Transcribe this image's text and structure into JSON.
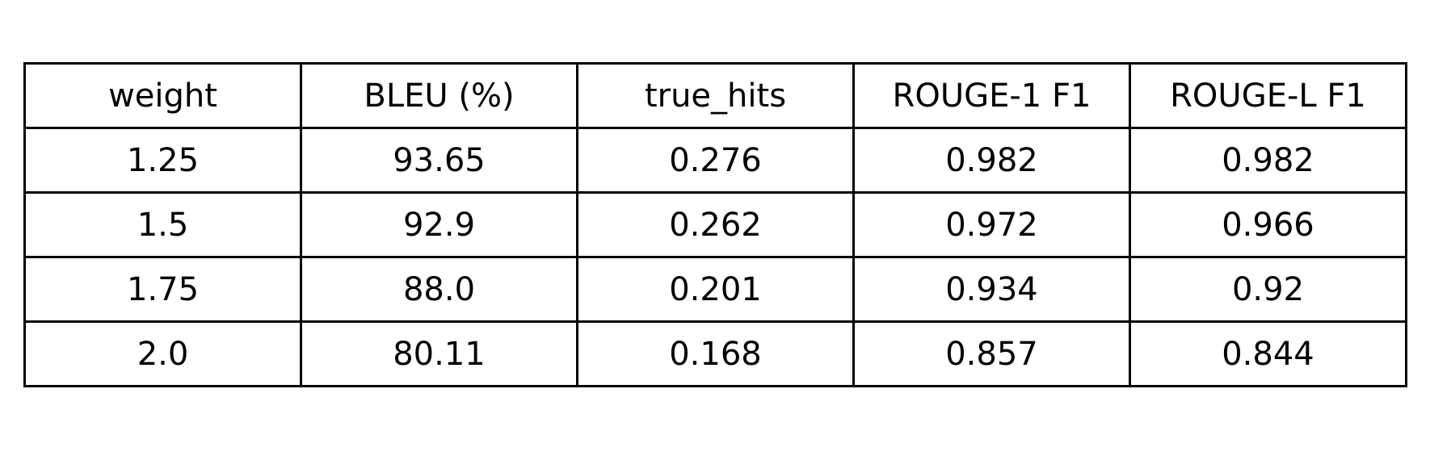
{
  "chart_data": {
    "type": "table",
    "columns": [
      "weight",
      "BLEU (%)",
      "true_hits",
      "ROUGE-1 F1",
      "ROUGE-L F1"
    ],
    "rows": [
      [
        "1.25",
        "93.65",
        "0.276",
        "0.982",
        "0.982"
      ],
      [
        "1.5",
        "92.9",
        "0.262",
        "0.972",
        "0.966"
      ],
      [
        "1.75",
        "88.0",
        "0.201",
        "0.934",
        "0.92"
      ],
      [
        "2.0",
        "80.11",
        "0.168",
        "0.857",
        "0.844"
      ]
    ]
  }
}
